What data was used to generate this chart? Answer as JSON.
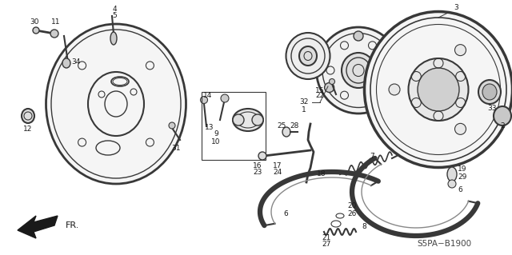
{
  "fig_width": 6.4,
  "fig_height": 3.19,
  "dpi": 100,
  "bg_color": "#ffffff",
  "diagram_code": "S5PA−B1900",
  "line_color": "#383838",
  "text_color": "#1a1a1a",
  "font_size": 6.5
}
